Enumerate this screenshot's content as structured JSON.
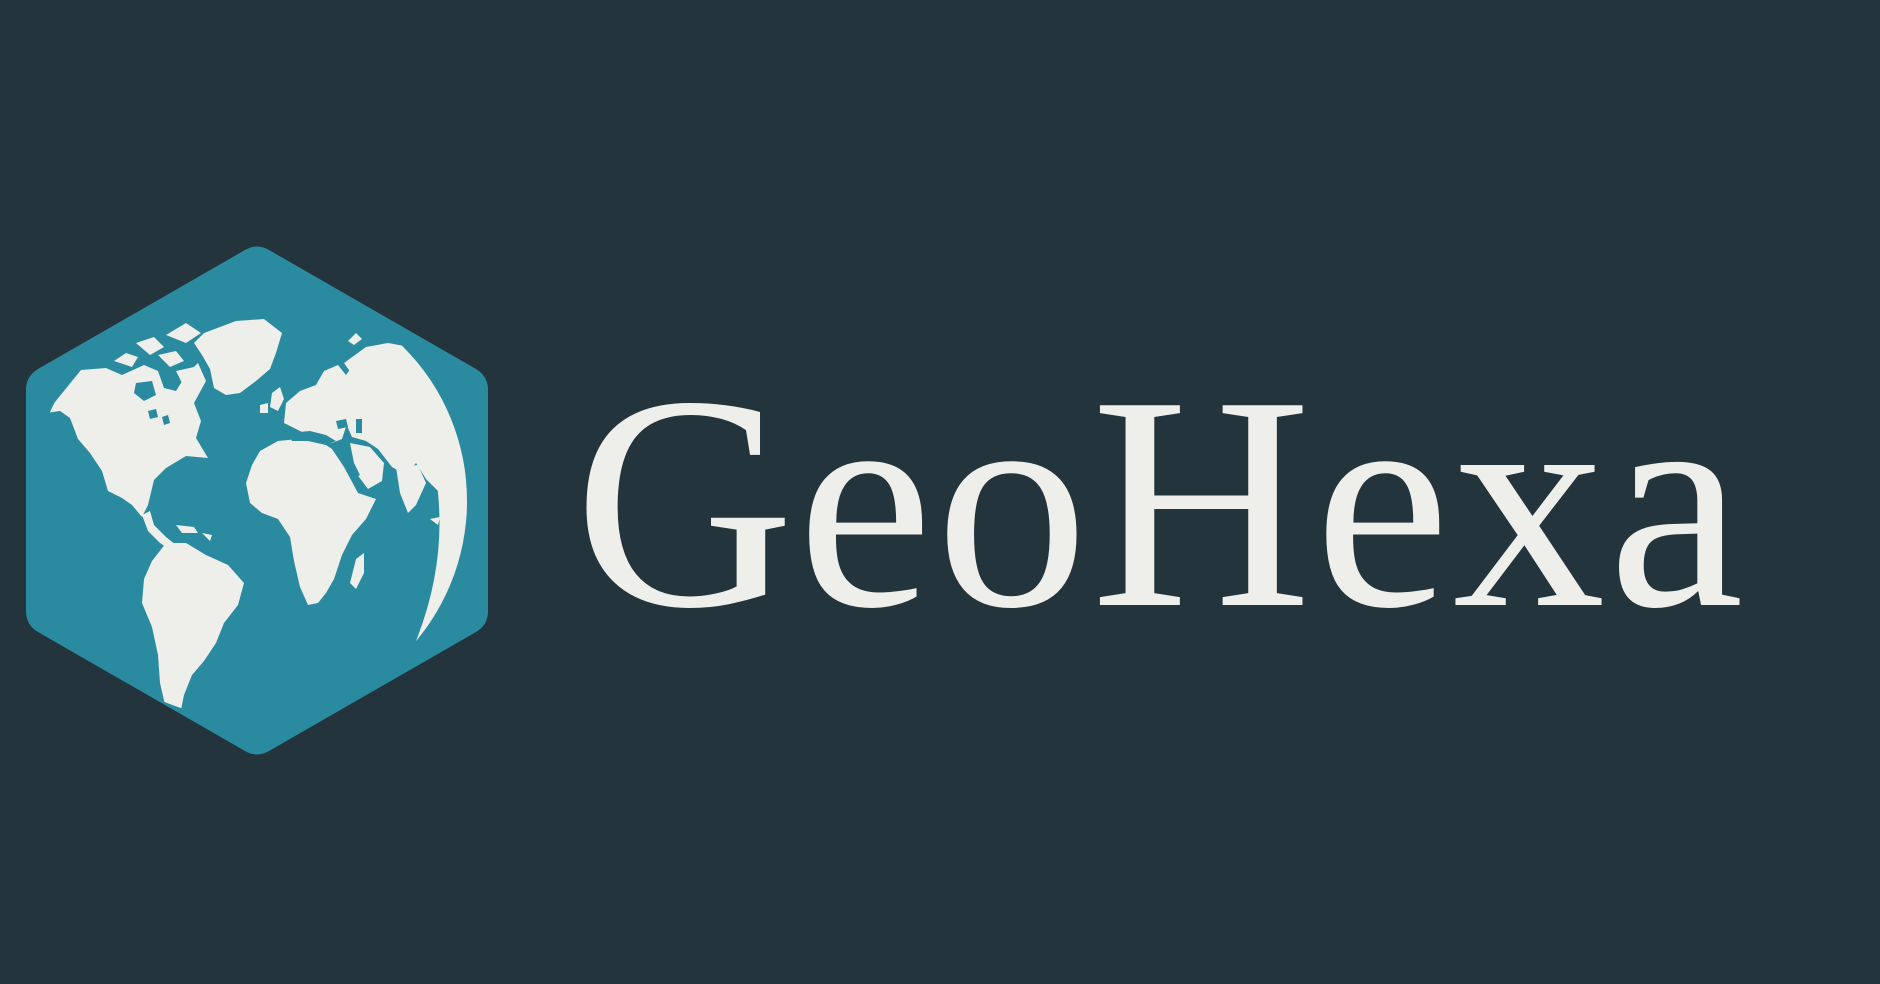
{
  "brand": {
    "name": "GeoHexa"
  },
  "icons": {
    "logo": "hexagon-globe-icon"
  },
  "colors": {
    "background": "#24343c",
    "hexagon": "#2a8ba0",
    "land": "#eeeeea",
    "text": "#eeeeea"
  }
}
